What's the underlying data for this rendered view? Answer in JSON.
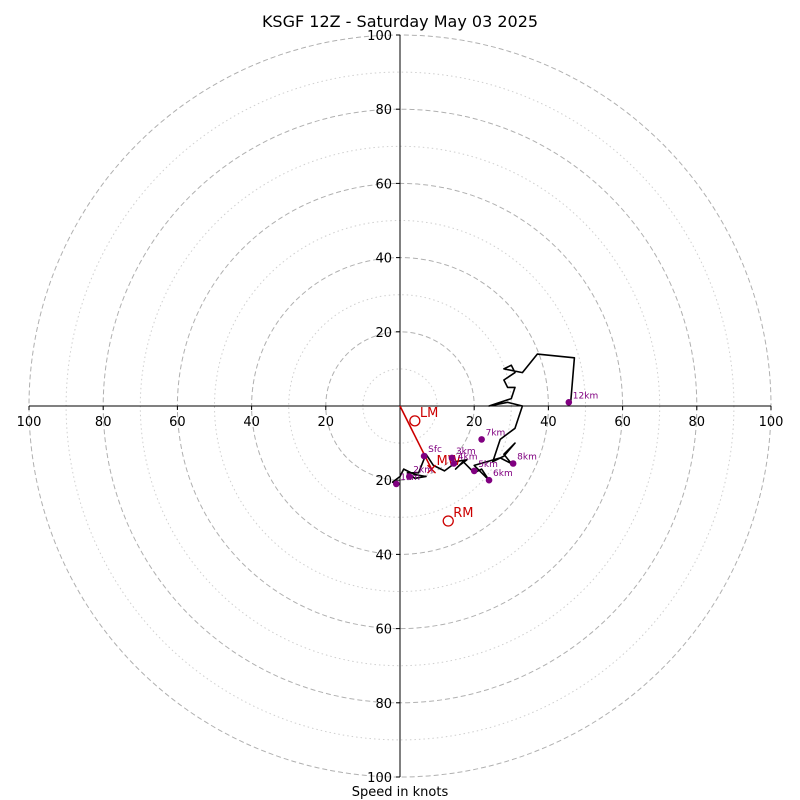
{
  "chart_data": {
    "type": "hodograph",
    "title": "KSGF 12Z - Saturday May 03 2025",
    "xlabel": "Speed in knots",
    "max_speed": 100,
    "ring_major": [
      20,
      40,
      60,
      80,
      100
    ],
    "ring_minor": [
      10,
      30,
      50,
      70,
      90
    ],
    "ticks": {
      "left": [
        "100",
        "80",
        "60",
        "40",
        "20"
      ],
      "right": [
        "20",
        "40",
        "60",
        "80",
        "100"
      ],
      "top": [
        "20",
        "40",
        "60",
        "80",
        "100"
      ],
      "bottom": [
        "20",
        "40",
        "60",
        "80",
        "100"
      ]
    },
    "colors": {
      "trace": "#000000",
      "height_markers": "#800080",
      "storm_motion": "#cc0000",
      "major_rings": "#b0b0b0",
      "minor_rings": "#cfcfcf"
    },
    "trace": [
      [
        -1,
        -21
      ],
      [
        -2,
        -20.5
      ],
      [
        0,
        -19
      ],
      [
        1,
        -17
      ],
      [
        4,
        -18.5
      ],
      [
        7,
        -19
      ],
      [
        4,
        -19.5
      ],
      [
        2,
        -18
      ],
      [
        5,
        -18
      ],
      [
        7,
        -13
      ],
      [
        9,
        -16
      ],
      [
        12,
        -17.5
      ],
      [
        14,
        -16
      ],
      [
        15,
        -15
      ],
      [
        18,
        -14.5
      ],
      [
        16,
        -16
      ],
      [
        15,
        -17
      ],
      [
        17,
        -15
      ],
      [
        20,
        -18
      ],
      [
        22,
        -17
      ],
      [
        24,
        -20
      ],
      [
        20,
        -16
      ],
      [
        27,
        -14
      ],
      [
        30,
        -15.5
      ],
      [
        28,
        -13
      ],
      [
        30,
        -11
      ],
      [
        31,
        -10
      ],
      [
        28,
        -13.5
      ],
      [
        25,
        -15
      ],
      [
        27,
        -9
      ],
      [
        31,
        -6
      ],
      [
        33,
        0
      ],
      [
        29,
        1
      ],
      [
        24,
        0
      ],
      [
        30,
        2
      ],
      [
        31,
        5
      ],
      [
        29,
        5
      ],
      [
        28,
        7
      ],
      [
        31,
        9
      ],
      [
        30,
        11
      ],
      [
        28,
        10
      ],
      [
        33,
        9
      ],
      [
        37,
        14
      ],
      [
        47,
        13
      ],
      [
        46,
        1
      ]
    ],
    "height_markers": [
      {
        "label": "Sfc",
        "u": 6.5,
        "v": -13.5
      },
      {
        "label": "1km",
        "u": -1,
        "v": -21
      },
      {
        "label": "2km",
        "u": 2.5,
        "v": -19
      },
      {
        "label": "3km",
        "u": 14,
        "v": -14
      },
      {
        "label": "4km",
        "u": 14.5,
        "v": -15.5
      },
      {
        "label": "5km",
        "u": 20,
        "v": -17.5
      },
      {
        "label": "6km",
        "u": 24,
        "v": -20
      },
      {
        "label": "7km",
        "u": 22,
        "v": -9
      },
      {
        "label": "8km",
        "u": 30.5,
        "v": -15.5
      },
      {
        "label": "12km",
        "u": 45.5,
        "v": 1
      }
    ],
    "storm_motion": [
      {
        "label": "LM",
        "u": 4,
        "v": -4,
        "marker": "open-circle"
      },
      {
        "label": "MW",
        "u": 8.5,
        "v": -17,
        "marker": "x"
      },
      {
        "label": "RM",
        "u": 13,
        "v": -31,
        "marker": "open-circle"
      }
    ]
  }
}
